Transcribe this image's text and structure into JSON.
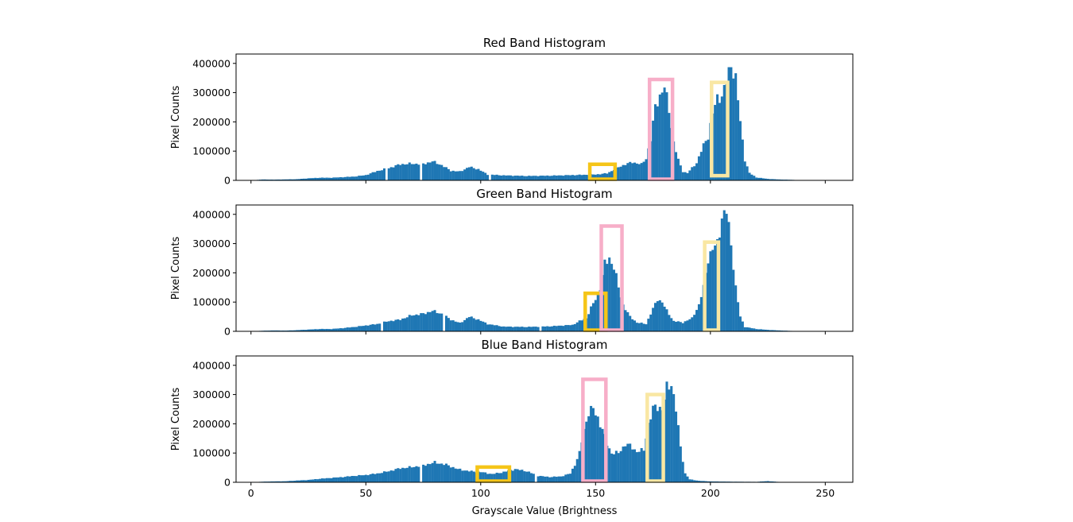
{
  "chart_data": [
    {
      "type": "bar",
      "title": "Red Band Histogram",
      "ylabel": "Pixel Counts",
      "xlabel": "",
      "xlim": [
        -6.5,
        262
      ],
      "ylim": [
        0,
        432000
      ],
      "xticks": [
        "0",
        "50",
        "100",
        "150",
        "200",
        "250"
      ],
      "yticks": [
        "0",
        "100000",
        "200000",
        "300000",
        "400000"
      ],
      "color": "#1f77b4",
      "peaks": [
        [
          0,
          0
        ],
        [
          5,
          3000
        ],
        [
          10,
          2500
        ],
        [
          20,
          4000
        ],
        [
          25,
          7000
        ],
        [
          30,
          9000
        ],
        [
          35,
          9000
        ],
        [
          40,
          11000
        ],
        [
          45,
          13000
        ],
        [
          50,
          18000
        ],
        [
          55,
          32000
        ],
        [
          60,
          42000
        ],
        [
          65,
          55000
        ],
        [
          70,
          57000
        ],
        [
          75,
          56000
        ],
        [
          79,
          65000
        ],
        [
          83,
          52000
        ],
        [
          87,
          33000
        ],
        [
          91,
          30000
        ],
        [
          95,
          46000
        ],
        [
          99,
          38000
        ],
        [
          103,
          20000
        ],
        [
          110,
          17000
        ],
        [
          120,
          15000
        ],
        [
          130,
          16000
        ],
        [
          140,
          18000
        ],
        [
          150,
          20000
        ],
        [
          155,
          24000
        ],
        [
          160,
          45000
        ],
        [
          163,
          55000
        ],
        [
          166,
          62000
        ],
        [
          170,
          55000
        ],
        [
          172,
          75000
        ],
        [
          174,
          140000
        ],
        [
          176,
          250000
        ],
        [
          178,
          290000
        ],
        [
          180,
          320000
        ],
        [
          182,
          240000
        ],
        [
          184,
          130000
        ],
        [
          186,
          70000
        ],
        [
          188,
          30000
        ],
        [
          190,
          25000
        ],
        [
          194,
          60000
        ],
        [
          197,
          120000
        ],
        [
          199,
          150000
        ],
        [
          201,
          230000
        ],
        [
          203,
          280000
        ],
        [
          205,
          290000
        ],
        [
          207,
          340000
        ],
        [
          209,
          395000
        ],
        [
          211,
          350000
        ],
        [
          213,
          200000
        ],
        [
          215,
          70000
        ],
        [
          217,
          25000
        ],
        [
          220,
          10000
        ],
        [
          225,
          5000
        ],
        [
          230,
          3000
        ],
        [
          235,
          2000
        ],
        [
          240,
          500
        ],
        [
          245,
          200
        ],
        [
          255,
          100
        ]
      ],
      "gaps": [
        59,
        74,
        104
      ],
      "highlights": [
        {
          "color": "#f5c518",
          "x0": 147.5,
          "x1": 158.5,
          "y0": 4000,
          "y1": 55000
        },
        {
          "color": "#f7aec8",
          "x0": 173.5,
          "x1": 183.5,
          "y0": 4000,
          "y1": 345000
        },
        {
          "color": "#f9e7a3",
          "x0": 200.5,
          "x1": 207.5,
          "y0": 16000,
          "y1": 335000
        }
      ]
    },
    {
      "type": "bar",
      "title": "Green Band Histogram",
      "ylabel": "Pixel Counts",
      "xlabel": "",
      "xlim": [
        -6.5,
        262
      ],
      "ylim": [
        0,
        432000
      ],
      "xticks": [
        "0",
        "50",
        "100",
        "150",
        "200",
        "250"
      ],
      "yticks": [
        "0",
        "100000",
        "200000",
        "300000",
        "400000"
      ],
      "color": "#1f77b4",
      "peaks": [
        [
          0,
          0
        ],
        [
          5,
          2000
        ],
        [
          10,
          3000
        ],
        [
          15,
          2500
        ],
        [
          20,
          4000
        ],
        [
          25,
          6000
        ],
        [
          30,
          8000
        ],
        [
          35,
          8000
        ],
        [
          40,
          11000
        ],
        [
          45,
          15000
        ],
        [
          50,
          20000
        ],
        [
          55,
          25000
        ],
        [
          60,
          35000
        ],
        [
          65,
          40000
        ],
        [
          70,
          55000
        ],
        [
          75,
          60000
        ],
        [
          79,
          70000
        ],
        [
          83,
          60000
        ],
        [
          87,
          40000
        ],
        [
          91,
          28000
        ],
        [
          95,
          50000
        ],
        [
          99,
          40000
        ],
        [
          103,
          25000
        ],
        [
          110,
          16000
        ],
        [
          120,
          15000
        ],
        [
          130,
          17000
        ],
        [
          140,
          22000
        ],
        [
          143,
          35000
        ],
        [
          146,
          45000
        ],
        [
          148,
          80000
        ],
        [
          150,
          110000
        ],
        [
          152,
          150000
        ],
        [
          154,
          230000
        ],
        [
          156,
          250000
        ],
        [
          158,
          220000
        ],
        [
          160,
          150000
        ],
        [
          162,
          90000
        ],
        [
          165,
          50000
        ],
        [
          168,
          30000
        ],
        [
          172,
          25000
        ],
        [
          174,
          60000
        ],
        [
          177,
          110000
        ],
        [
          179,
          100000
        ],
        [
          181,
          70000
        ],
        [
          184,
          35000
        ],
        [
          188,
          30000
        ],
        [
          192,
          45000
        ],
        [
          195,
          90000
        ],
        [
          197,
          150000
        ],
        [
          199,
          250000
        ],
        [
          201,
          280000
        ],
        [
          203,
          300000
        ],
        [
          205,
          390000
        ],
        [
          207,
          410000
        ],
        [
          209,
          300000
        ],
        [
          211,
          150000
        ],
        [
          213,
          50000
        ],
        [
          215,
          15000
        ],
        [
          220,
          8000
        ],
        [
          225,
          5000
        ],
        [
          230,
          3000
        ],
        [
          235,
          1500
        ],
        [
          240,
          500
        ],
        [
          245,
          200
        ],
        [
          255,
          100
        ]
      ],
      "gaps": [
        57,
        84,
        126
      ],
      "highlights": [
        {
          "color": "#f5c518",
          "x0": 145.5,
          "x1": 154.5,
          "y0": 4000,
          "y1": 130000
        },
        {
          "color": "#f7aec8",
          "x0": 152.5,
          "x1": 161.5,
          "y0": 4000,
          "y1": 360000
        },
        {
          "color": "#f9e7a3",
          "x0": 197.5,
          "x1": 203.5,
          "y0": 4000,
          "y1": 305000
        }
      ]
    },
    {
      "type": "bar",
      "title": "Blue Band Histogram",
      "ylabel": "Pixel Counts",
      "xlabel": "Grayscale Value (Brightness",
      "xlim": [
        -6.5,
        262
      ],
      "ylim": [
        0,
        432000
      ],
      "xticks": [
        "0",
        "50",
        "100",
        "150",
        "200",
        "250"
      ],
      "yticks": [
        "0",
        "100000",
        "200000",
        "300000",
        "400000"
      ],
      "color": "#1f77b4",
      "peaks": [
        [
          0,
          0
        ],
        [
          5,
          2000
        ],
        [
          10,
          3000
        ],
        [
          15,
          3500
        ],
        [
          20,
          6000
        ],
        [
          25,
          8000
        ],
        [
          30,
          12000
        ],
        [
          35,
          15000
        ],
        [
          40,
          18000
        ],
        [
          45,
          22000
        ],
        [
          50,
          25000
        ],
        [
          55,
          30000
        ],
        [
          60,
          38000
        ],
        [
          65,
          48000
        ],
        [
          70,
          52000
        ],
        [
          75,
          58000
        ],
        [
          80,
          68000
        ],
        [
          85,
          60000
        ],
        [
          90,
          45000
        ],
        [
          95,
          38000
        ],
        [
          100,
          35000
        ],
        [
          105,
          28000
        ],
        [
          110,
          35000
        ],
        [
          115,
          45000
        ],
        [
          120,
          38000
        ],
        [
          125,
          22000
        ],
        [
          130,
          18000
        ],
        [
          135,
          20000
        ],
        [
          139,
          30000
        ],
        [
          141,
          60000
        ],
        [
          143,
          100000
        ],
        [
          145,
          180000
        ],
        [
          147,
          240000
        ],
        [
          149,
          250000
        ],
        [
          151,
          220000
        ],
        [
          153,
          180000
        ],
        [
          155,
          130000
        ],
        [
          157,
          100000
        ],
        [
          160,
          100000
        ],
        [
          163,
          130000
        ],
        [
          165,
          125000
        ],
        [
          168,
          105000
        ],
        [
          171,
          110000
        ],
        [
          173,
          200000
        ],
        [
          175,
          250000
        ],
        [
          177,
          260000
        ],
        [
          179,
          250000
        ],
        [
          181,
          320000
        ],
        [
          183,
          340000
        ],
        [
          185,
          250000
        ],
        [
          187,
          120000
        ],
        [
          189,
          30000
        ],
        [
          191,
          10000
        ],
        [
          195,
          5000
        ],
        [
          200,
          3000
        ],
        [
          210,
          2000
        ],
        [
          220,
          1500
        ],
        [
          225,
          4000
        ],
        [
          230,
          1000
        ],
        [
          240,
          500
        ],
        [
          255,
          100
        ]
      ],
      "gaps": [
        74,
        124
      ],
      "highlights": [
        {
          "color": "#f5c518",
          "x0": 98.5,
          "x1": 112.5,
          "y0": 4000,
          "y1": 52000
        },
        {
          "color": "#f7aec8",
          "x0": 144.5,
          "x1": 154.5,
          "y0": 4000,
          "y1": 352000
        },
        {
          "color": "#f9e7a3",
          "x0": 172.5,
          "x1": 179.5,
          "y0": 4000,
          "y1": 300000
        }
      ]
    }
  ]
}
